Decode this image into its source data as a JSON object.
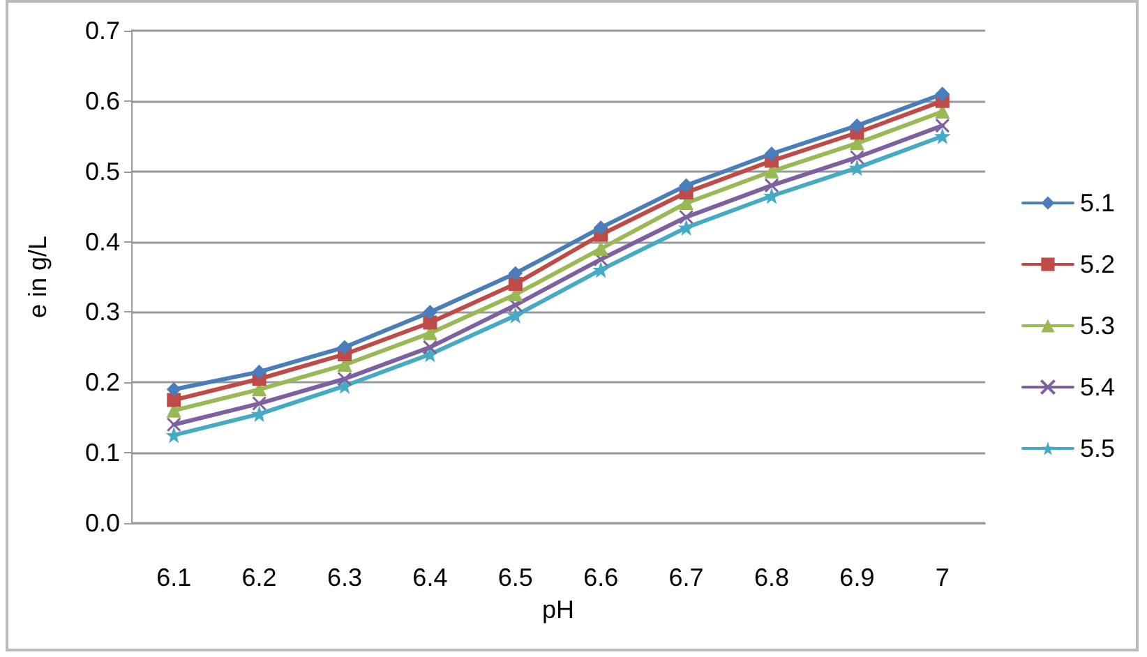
{
  "chart_data": {
    "type": "line",
    "xlabel": "pH",
    "ylabel": "e in g/L",
    "categories": [
      "6.1",
      "6.2",
      "6.3",
      "6.4",
      "6.5",
      "6.6",
      "6.7",
      "6.8",
      "6.9",
      "7"
    ],
    "ylim": [
      0,
      0.7
    ],
    "yticks": [
      {
        "value": 0,
        "label": "0.0"
      },
      0.1,
      0.2,
      0.3,
      0.4,
      0.5,
      0.6,
      0.7
    ],
    "grid": "y",
    "legend": "right",
    "series": [
      {
        "name": "5.1",
        "color": "#4a7ebb",
        "marker": "diamond",
        "values": [
          0.19,
          0.215,
          0.25,
          0.3,
          0.355,
          0.42,
          0.48,
          0.525,
          0.565,
          0.61
        ]
      },
      {
        "name": "5.2",
        "color": "#be4b48",
        "marker": "square",
        "values": [
          0.175,
          0.205,
          0.24,
          0.285,
          0.34,
          0.41,
          0.47,
          0.515,
          0.555,
          0.6
        ]
      },
      {
        "name": "5.3",
        "color": "#98b954",
        "marker": "triangle",
        "values": [
          0.16,
          0.19,
          0.225,
          0.27,
          0.325,
          0.39,
          0.455,
          0.5,
          0.54,
          0.585
        ]
      },
      {
        "name": "5.4",
        "color": "#7d60a0",
        "marker": "cross",
        "values": [
          0.14,
          0.17,
          0.205,
          0.25,
          0.31,
          0.375,
          0.435,
          0.48,
          0.52,
          0.565
        ]
      },
      {
        "name": "5.5",
        "color": "#46aac5",
        "marker": "star",
        "values": [
          0.125,
          0.155,
          0.195,
          0.24,
          0.295,
          0.36,
          0.42,
          0.465,
          0.505,
          0.55
        ]
      }
    ]
  }
}
